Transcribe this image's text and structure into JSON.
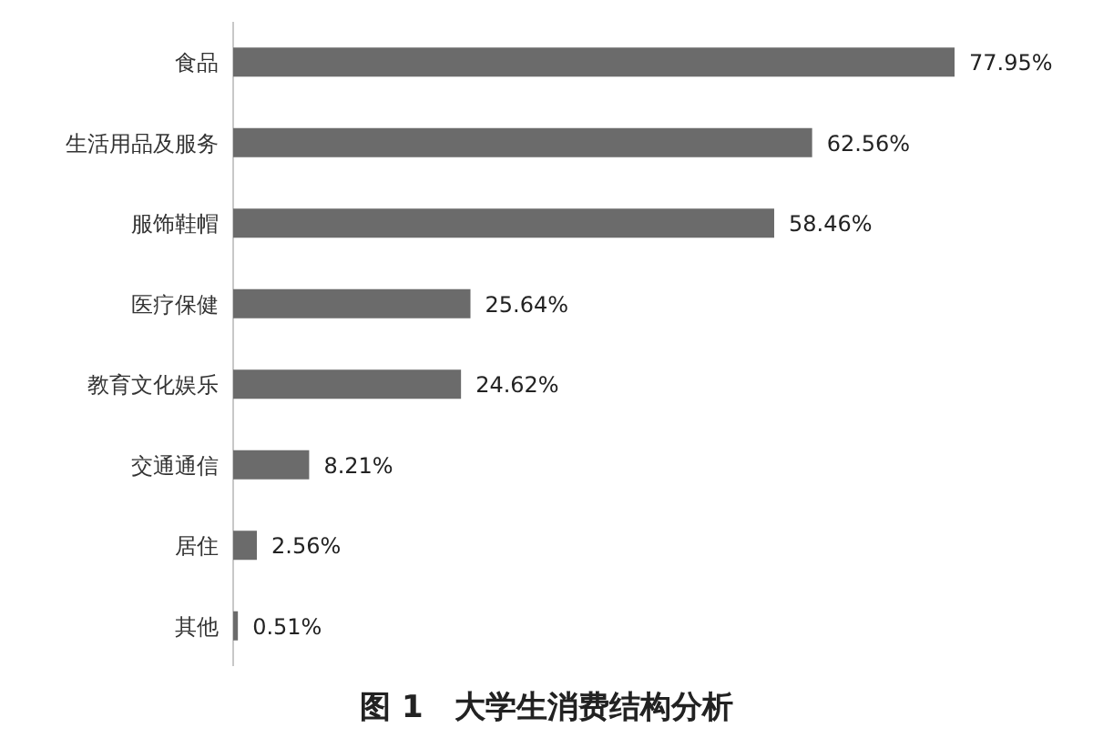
{
  "chart_data": {
    "type": "bar",
    "orientation": "horizontal",
    "title": "图 1　大学生消费结构分析",
    "categories": [
      "食品",
      "生活用品及服务",
      "服饰鞋帽",
      "医疗保健",
      "教育文化娱乐",
      "交通通信",
      "居住",
      "其他"
    ],
    "values": [
      77.95,
      62.56,
      58.46,
      25.64,
      24.62,
      8.21,
      2.56,
      0.51
    ],
    "value_labels": [
      "77.95%",
      "62.56%",
      "58.46%",
      "25.64%",
      "24.62%",
      "8.21%",
      "2.56%",
      "0.51%"
    ],
    "color": "#6b6b6b"
  }
}
